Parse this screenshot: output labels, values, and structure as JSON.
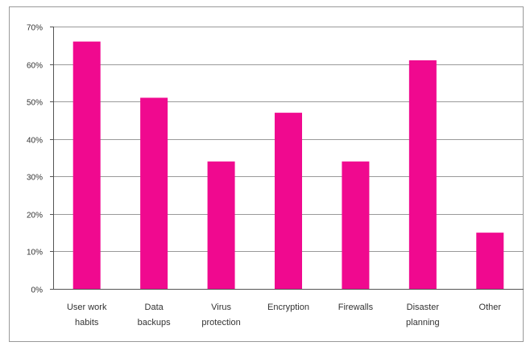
{
  "chart_data": {
    "type": "bar",
    "categories": [
      [
        "User work",
        "habits"
      ],
      [
        "Data",
        "backups"
      ],
      [
        "Virus",
        "protection"
      ],
      [
        "Encryption"
      ],
      [
        "Firewalls"
      ],
      [
        "Disaster",
        "planning"
      ],
      [
        "Other"
      ]
    ],
    "values": [
      66,
      51,
      34,
      47,
      34,
      61,
      15
    ],
    "ylim": [
      0,
      70
    ],
    "yticks": [
      "0%",
      "10%",
      "20%",
      "30%",
      "40%",
      "50%",
      "60%",
      "70%"
    ],
    "title": "",
    "xlabel": "",
    "ylabel": "",
    "grid": true,
    "bar_color": "#f0098f",
    "grid_color": "#9a9a9a"
  }
}
